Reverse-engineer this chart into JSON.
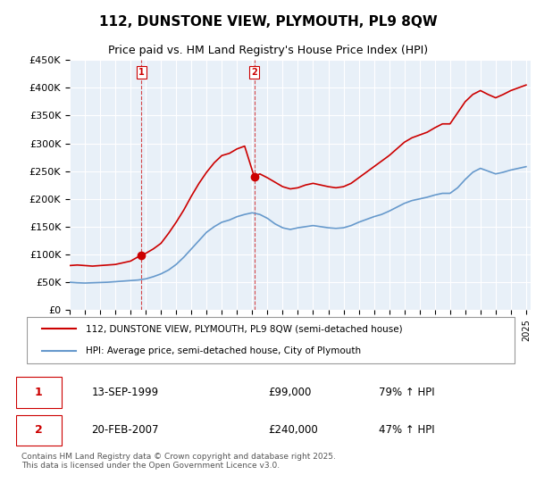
{
  "title": "112, DUNSTONE VIEW, PLYMOUTH, PL9 8QW",
  "subtitle": "Price paid vs. HM Land Registry's House Price Index (HPI)",
  "legend_line1": "112, DUNSTONE VIEW, PLYMOUTH, PL9 8QW (semi-detached house)",
  "legend_line2": "HPI: Average price, semi-detached house, City of Plymouth",
  "footer": "Contains HM Land Registry data © Crown copyright and database right 2025.\nThis data is licensed under the Open Government Licence v3.0.",
  "sale1_label": "1",
  "sale1_date": "13-SEP-1999",
  "sale1_price": "£99,000",
  "sale1_hpi": "79% ↑ HPI",
  "sale2_label": "2",
  "sale2_date": "20-FEB-2007",
  "sale2_price": "£240,000",
  "sale2_hpi": "47% ↑ HPI",
  "property_color": "#cc0000",
  "hpi_color": "#6699cc",
  "vline_color": "#cc0000",
  "background_color": "#ffffff",
  "plot_bg_color": "#e8f0f8",
  "grid_color": "#ffffff",
  "ylim": [
    0,
    450000
  ],
  "yticks": [
    0,
    50000,
    100000,
    150000,
    200000,
    250000,
    300000,
    350000,
    400000,
    450000
  ],
  "sale1_x": 1999.71,
  "sale1_y": 99000,
  "sale2_x": 2007.13,
  "sale2_y": 240000,
  "hpi_x": [
    1995,
    1995.5,
    1996,
    1996.5,
    1997,
    1997.5,
    1998,
    1998.5,
    1999,
    1999.5,
    2000,
    2000.5,
    2001,
    2001.5,
    2002,
    2002.5,
    2003,
    2003.5,
    2004,
    2004.5,
    2005,
    2005.5,
    2006,
    2006.5,
    2007,
    2007.5,
    2008,
    2008.5,
    2009,
    2009.5,
    2010,
    2010.5,
    2011,
    2011.5,
    2012,
    2012.5,
    2013,
    2013.5,
    2014,
    2014.5,
    2015,
    2015.5,
    2016,
    2016.5,
    2017,
    2017.5,
    2018,
    2018.5,
    2019,
    2019.5,
    2020,
    2020.5,
    2021,
    2021.5,
    2022,
    2022.5,
    2023,
    2023.5,
    2024,
    2024.5,
    2025
  ],
  "hpi_y": [
    50000,
    49000,
    48500,
    49000,
    49500,
    50000,
    51000,
    52000,
    53000,
    54000,
    56000,
    60000,
    65000,
    72000,
    82000,
    95000,
    110000,
    125000,
    140000,
    150000,
    158000,
    162000,
    168000,
    172000,
    175000,
    172000,
    165000,
    155000,
    148000,
    145000,
    148000,
    150000,
    152000,
    150000,
    148000,
    147000,
    148000,
    152000,
    158000,
    163000,
    168000,
    172000,
    178000,
    185000,
    192000,
    197000,
    200000,
    203000,
    207000,
    210000,
    210000,
    220000,
    235000,
    248000,
    255000,
    250000,
    245000,
    248000,
    252000,
    255000,
    258000
  ],
  "prop_x": [
    1995,
    1995.5,
    1996,
    1996.5,
    1997,
    1997.5,
    1998,
    1998.5,
    1999,
    1999.71,
    2000,
    2000.5,
    2001,
    2001.5,
    2002,
    2002.5,
    2003,
    2003.5,
    2004,
    2004.5,
    2005,
    2005.5,
    2006,
    2006.5,
    2007.13,
    2007.5,
    2008,
    2008.5,
    2009,
    2009.5,
    2010,
    2010.5,
    2011,
    2011.5,
    2012,
    2012.5,
    2013,
    2013.5,
    2014,
    2014.5,
    2015,
    2015.5,
    2016,
    2016.5,
    2017,
    2017.5,
    2018,
    2018.5,
    2019,
    2019.5,
    2020,
    2020.5,
    2021,
    2021.5,
    2022,
    2022.5,
    2023,
    2023.5,
    2024,
    2024.5,
    2025
  ],
  "prop_y": [
    80000,
    81000,
    80000,
    79000,
    80000,
    81000,
    82000,
    85000,
    88000,
    99000,
    102000,
    110000,
    120000,
    138000,
    158000,
    180000,
    205000,
    228000,
    248000,
    265000,
    278000,
    282000,
    290000,
    295000,
    240000,
    245000,
    238000,
    230000,
    222000,
    218000,
    220000,
    225000,
    228000,
    225000,
    222000,
    220000,
    222000,
    228000,
    238000,
    248000,
    258000,
    268000,
    278000,
    290000,
    302000,
    310000,
    315000,
    320000,
    328000,
    335000,
    335000,
    355000,
    375000,
    388000,
    395000,
    388000,
    382000,
    388000,
    395000,
    400000,
    405000
  ],
  "xticks": [
    1995,
    1996,
    1997,
    1998,
    1999,
    2000,
    2001,
    2002,
    2003,
    2004,
    2005,
    2006,
    2007,
    2008,
    2009,
    2010,
    2011,
    2012,
    2013,
    2014,
    2015,
    2016,
    2017,
    2018,
    2019,
    2020,
    2021,
    2022,
    2023,
    2024,
    2025
  ]
}
